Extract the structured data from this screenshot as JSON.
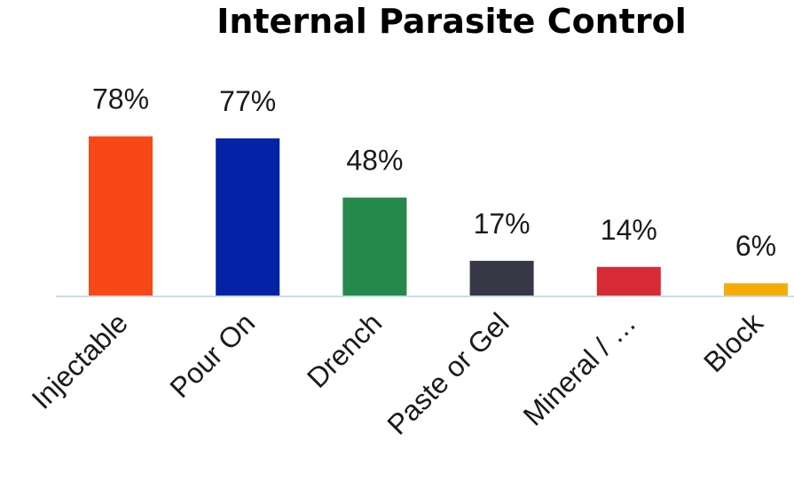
{
  "chart_data": {
    "type": "bar",
    "title": "Internal Parasite Control",
    "xlabel": "",
    "ylabel": "",
    "categories": [
      "Injectable",
      "Pour On",
      "Drench",
      "Paste or Gel",
      "Mineral / …",
      "Block"
    ],
    "values": [
      78,
      77,
      48,
      17,
      14,
      6
    ],
    "data_labels": [
      "78%",
      "77%",
      "48%",
      "17%",
      "14%",
      "6%"
    ],
    "colors": [
      "#F84818",
      "#0323A6",
      "#25894B",
      "#363945",
      "#D62A36",
      "#F6AC05"
    ],
    "ylim": [
      0,
      100
    ],
    "grid": false,
    "legend": "none"
  },
  "axis_color": "#C8DDE9"
}
